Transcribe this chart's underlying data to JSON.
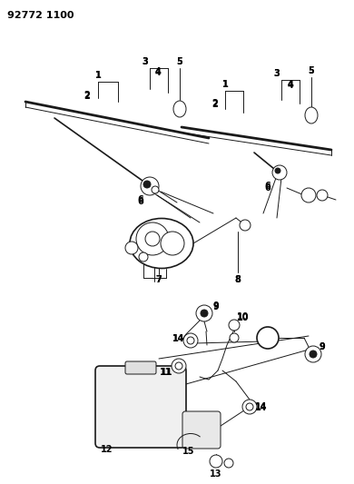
{
  "title_code": "92772 1100",
  "bg_color": "#ffffff",
  "lc": "#1a1a1a",
  "fig_width": 3.9,
  "fig_height": 5.33,
  "dpi": 100
}
